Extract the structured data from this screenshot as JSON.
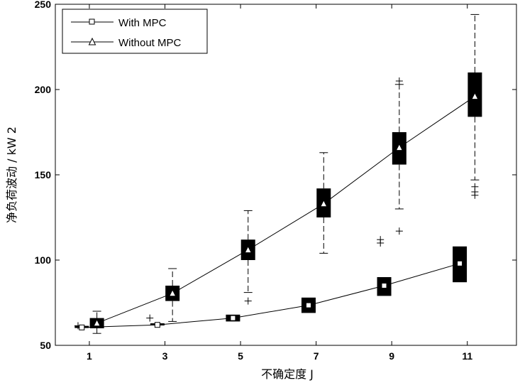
{
  "chart_data": {
    "type": "box",
    "xlabel": "不确定度 J",
    "ylabel": "净负荷波动 / kW 2",
    "xlim": [
      0.1,
      12.3
    ],
    "ylim": [
      50,
      250
    ],
    "xticks": [
      1,
      3,
      5,
      7,
      9,
      11
    ],
    "yticks": [
      50,
      100,
      150,
      200,
      250
    ],
    "legend": {
      "position": "top-left",
      "entries": [
        "With MPC",
        "Without MPC"
      ]
    },
    "series": [
      {
        "name": "With MPC",
        "marker": "square",
        "boxes": [
          {
            "x": 0.8,
            "median": 60.5,
            "q1": 60,
            "q3": 61
          },
          {
            "x": 2.8,
            "median": 62,
            "q1": 61.5,
            "q3": 62.5
          },
          {
            "x": 4.8,
            "median": 66,
            "q1": 64,
            "q3": 68
          },
          {
            "x": 6.8,
            "median": 73.5,
            "q1": 69,
            "q3": 78
          },
          {
            "x": 8.8,
            "median": 85,
            "q1": 79,
            "q3": 90
          },
          {
            "x": 10.8,
            "median": 98,
            "q1": 87,
            "q3": 108
          }
        ],
        "outliers": [
          {
            "x": 0.7,
            "y": 61.5
          },
          {
            "x": 2.6,
            "y": 66
          },
          {
            "x": 8.7,
            "y": 110
          },
          {
            "x": 8.7,
            "y": 112
          }
        ]
      },
      {
        "name": "Without MPC",
        "marker": "triangle",
        "boxes": [
          {
            "x": 1.2,
            "median": 63,
            "q1": 60,
            "q3": 66,
            "whisker_low": 57,
            "whisker_high": 70
          },
          {
            "x": 3.2,
            "median": 80.5,
            "q1": 76,
            "q3": 85,
            "whisker_low": 64,
            "whisker_high": 95
          },
          {
            "x": 5.2,
            "median": 106,
            "q1": 100,
            "q3": 112,
            "whisker_low": 81,
            "whisker_high": 129
          },
          {
            "x": 7.2,
            "median": 133,
            "q1": 125,
            "q3": 142,
            "whisker_low": 104,
            "whisker_high": 163
          },
          {
            "x": 9.2,
            "median": 166,
            "q1": 156,
            "q3": 175,
            "whisker_low": 130,
            "whisker_high": 203
          },
          {
            "x": 11.2,
            "median": 196,
            "q1": 184,
            "q3": 210,
            "whisker_low": 147,
            "whisker_high": 244
          }
        ],
        "outliers": [
          {
            "x": 5.2,
            "y": 76
          },
          {
            "x": 9.2,
            "y": 117
          },
          {
            "x": 9.2,
            "y": 205
          },
          {
            "x": 11.2,
            "y": 138
          },
          {
            "x": 11.2,
            "y": 140
          },
          {
            "x": 11.2,
            "y": 143
          }
        ]
      }
    ]
  }
}
